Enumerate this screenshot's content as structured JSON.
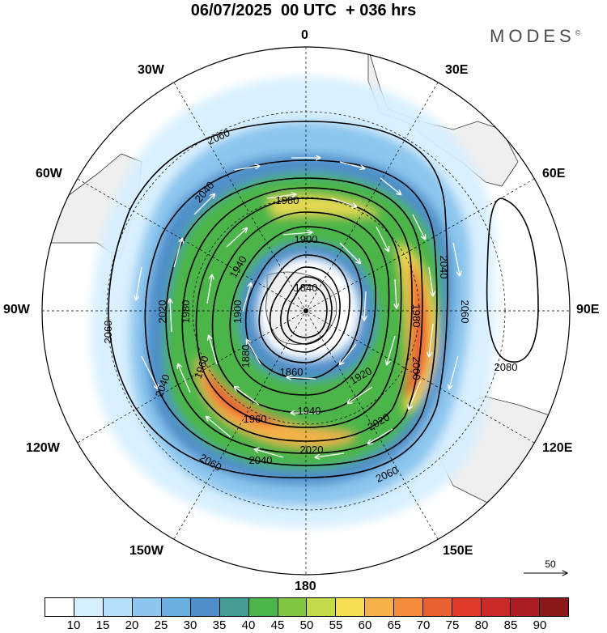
{
  "title": "06/07/2025  00 UTC  + 036 hrs",
  "brand": "MODES",
  "brand_mark": "©",
  "longitude_labels": {
    "n": "0",
    "ne30": "30E",
    "e60": "60E",
    "e90": "90E",
    "e120": "120E",
    "e150": "150E",
    "s": "180",
    "w150": "150W",
    "w120": "120W",
    "w90": "90W",
    "w60": "60W",
    "w30": "30W"
  },
  "reference_vector": {
    "value": "50"
  },
  "contour_labels": {
    "c1840": "1840",
    "c1860": "1860",
    "c1880": "1880",
    "c1900a": "1900",
    "c1900b": "1900",
    "c1920": "1920",
    "c1940a": "1940",
    "c1940b": "1940",
    "c1960a": "1960",
    "c1960b": "1960",
    "c1980a": "1980",
    "c1980b": "1980",
    "c2000": "2000",
    "c2020a": "2020",
    "c2020b": "2020",
    "c2020c": "2020",
    "c2040a": "2040",
    "c2040b": "2040",
    "c2040c": "2040",
    "c2040d": "2040",
    "c2060a": "2060",
    "c2060b": "2060",
    "c2060c": "2060",
    "c2060d": "2060",
    "c2060e": "2060",
    "c2080": "2080"
  },
  "colorbar": {
    "ticks": [
      "10",
      "15",
      "20",
      "25",
      "30",
      "35",
      "40",
      "45",
      "50",
      "55",
      "60",
      "65",
      "70",
      "75",
      "80",
      "85",
      "90"
    ],
    "colors": [
      "#ffffff",
      "#d6efff",
      "#b5e0fa",
      "#8cc6ee",
      "#68aedf",
      "#4f8fc9",
      "#459c93",
      "#4bb54a",
      "#7fc641",
      "#c5dc4a",
      "#f6dd52",
      "#f7b14a",
      "#f48b3b",
      "#ea6030",
      "#df3a2a",
      "#c92a28",
      "#ab1f22",
      "#8c1719"
    ]
  }
}
